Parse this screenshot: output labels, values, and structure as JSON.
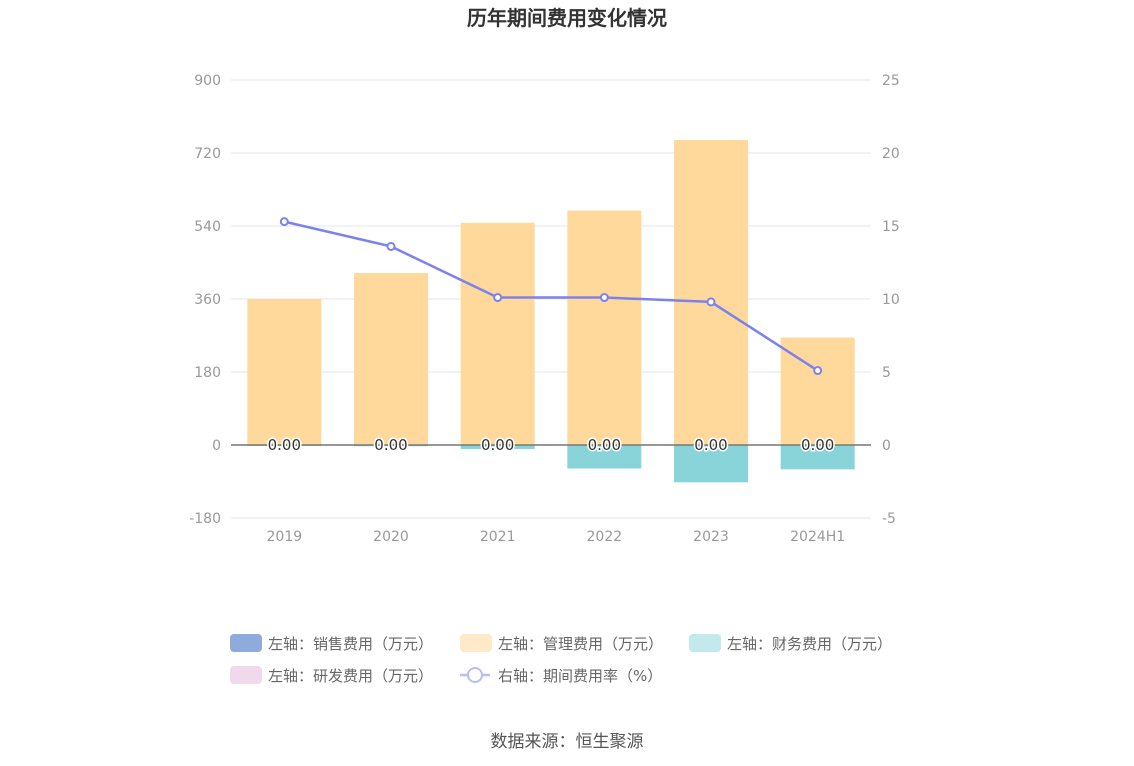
{
  "chart_data": {
    "type": "bar",
    "title": "历年期间费用变化情况",
    "categories": [
      "2019",
      "2020",
      "2021",
      "2022",
      "2023",
      "2024H1"
    ],
    "left_axis": {
      "ticks": [
        "900",
        "720",
        "540",
        "360",
        "180",
        "0",
        "-180"
      ],
      "ylim": [
        -180,
        900
      ]
    },
    "right_axis": {
      "ticks": [
        "25",
        "20",
        "15",
        "10",
        "5",
        "0",
        "-5"
      ],
      "ylim": [
        -5,
        25
      ]
    },
    "series": [
      {
        "name": "左轴：销售费用（万元）",
        "kind": "bar",
        "axis": "left",
        "color": "#8faadc",
        "values": [
          0,
          0,
          0,
          0,
          0,
          0
        ]
      },
      {
        "name": "左轴：管理费用（万元）",
        "kind": "bar",
        "axis": "left",
        "color": "#ffd99b",
        "legend_color": "#ffe9c8",
        "values": [
          360,
          424,
          548,
          578,
          752,
          265
        ]
      },
      {
        "name": "左轴：财务费用（万元）",
        "kind": "bar",
        "axis": "left",
        "color": "#88d4d8",
        "legend_color": "#c2e9eb",
        "values": [
          -2,
          -3,
          -10,
          -58,
          -92,
          -60
        ]
      },
      {
        "name": "左轴：研发费用（万元）",
        "kind": "bar",
        "axis": "left",
        "color": "#f1d9ec",
        "values": [
          0,
          0,
          0,
          0,
          0,
          0
        ]
      },
      {
        "name": "右轴：期间费用率（%）",
        "kind": "line",
        "axis": "right",
        "color": "#7b82ee",
        "values": [
          15.3,
          13.6,
          10.1,
          10.1,
          9.8,
          5.1
        ]
      }
    ],
    "data_labels": [
      "0.00",
      "0.00",
      "0.00",
      "0.00",
      "0.00",
      "0.00"
    ],
    "legend_position": "bottom",
    "grid": true
  },
  "source": "数据来源：恒生聚源"
}
